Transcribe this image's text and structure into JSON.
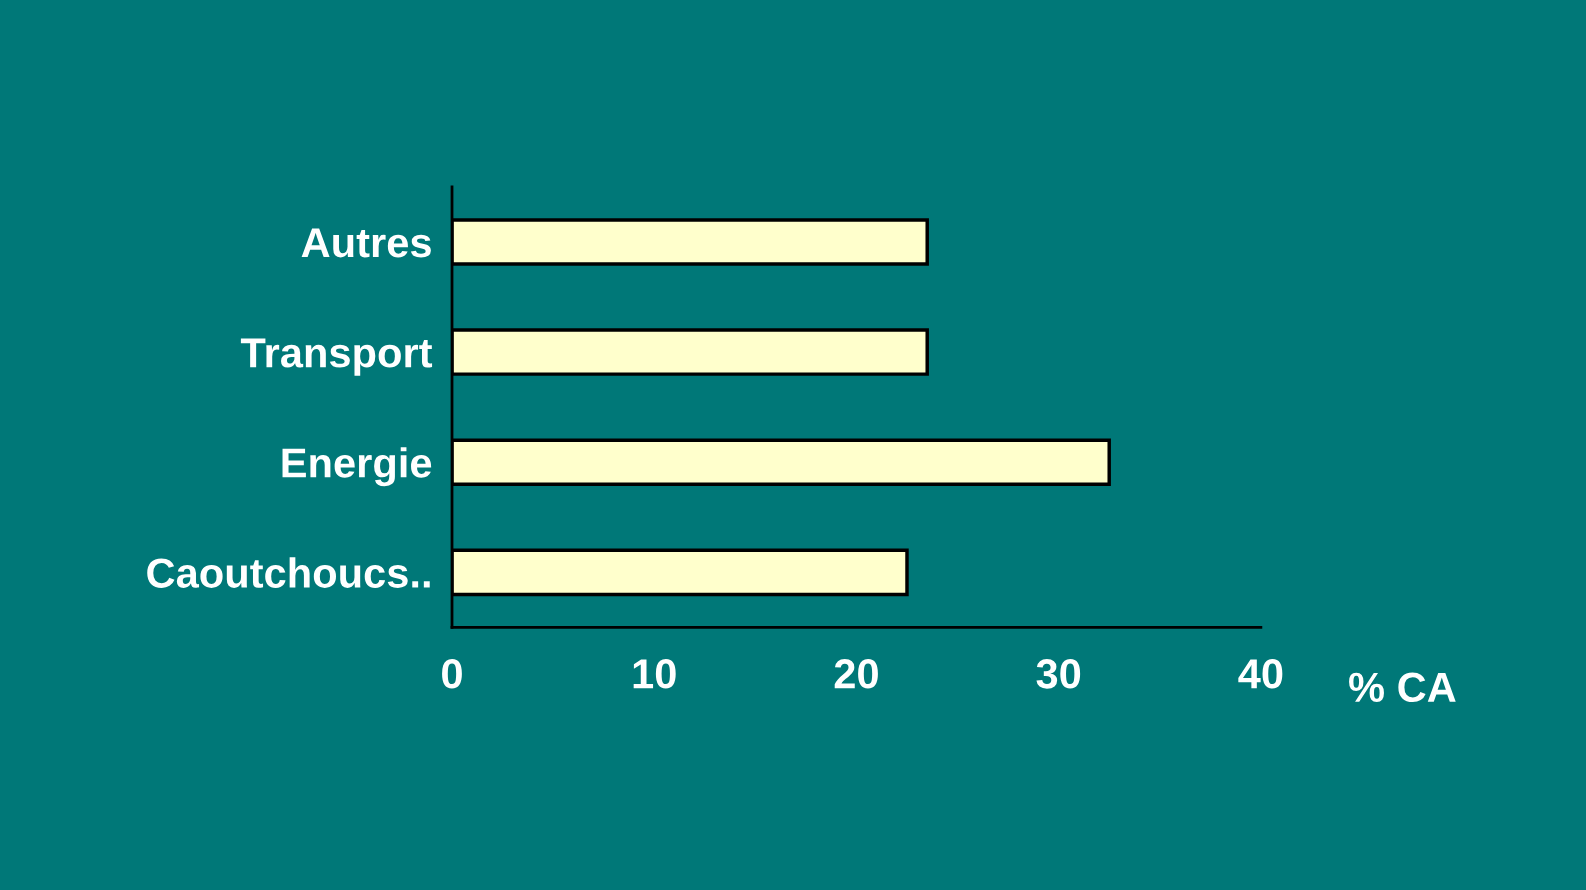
{
  "chart_data": {
    "type": "bar",
    "orientation": "horizontal",
    "xlabel": "% CA",
    "categories": [
      "Autres",
      "Transport",
      "Energie",
      "Caoutchoucs.."
    ],
    "values": [
      23.5,
      23.5,
      32.5,
      22.5
    ],
    "color": "#ffffcc",
    "xlim": [
      0,
      40
    ],
    "xticks": [
      0,
      10,
      20,
      30,
      40
    ],
    "grid": false
  }
}
